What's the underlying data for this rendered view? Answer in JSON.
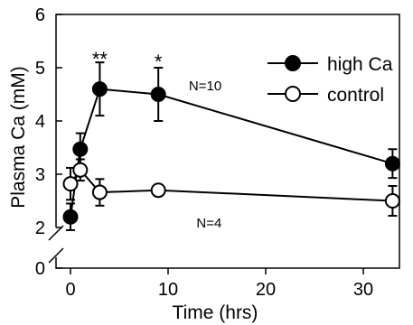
{
  "chart_data": {
    "type": "line",
    "title": "",
    "xlabel": "Time (hrs)",
    "ylabel": "Plasma Ca (mM)",
    "xlim": [
      -1,
      35
    ],
    "ylim_upper": [
      2,
      6
    ],
    "ylim_lower": [
      0,
      0.5
    ],
    "axis_break": true,
    "x_ticks": [
      0,
      10,
      20,
      30
    ],
    "y_ticks_upper": [
      2,
      3,
      4,
      5,
      6
    ],
    "y_ticks_lower": [
      0
    ],
    "legend_position": "top-right",
    "series": [
      {
        "name": "high Ca",
        "marker": "filled-circle",
        "x": [
          0,
          1,
          3,
          9,
          33
        ],
        "y": [
          2.2,
          3.47,
          4.6,
          4.5,
          3.2
        ],
        "err": [
          0.25,
          0.3,
          0.5,
          0.5,
          0.27
        ]
      },
      {
        "name": "control",
        "marker": "open-circle",
        "x": [
          0,
          1,
          3,
          9,
          33
        ],
        "y": [
          2.82,
          3.08,
          2.66,
          2.7,
          2.5
        ],
        "err": [
          0.3,
          0.2,
          0.25,
          0.1,
          0.28
        ]
      }
    ],
    "annotations": [
      {
        "text": "**",
        "x": 3,
        "y": 5.2
      },
      {
        "text": "*",
        "x": 9,
        "y": 5.15
      },
      {
        "text": "N=10",
        "x": 13.8,
        "y": 4.68
      },
      {
        "text": "N=4",
        "x": 14.2,
        "y": 2.1
      }
    ]
  }
}
